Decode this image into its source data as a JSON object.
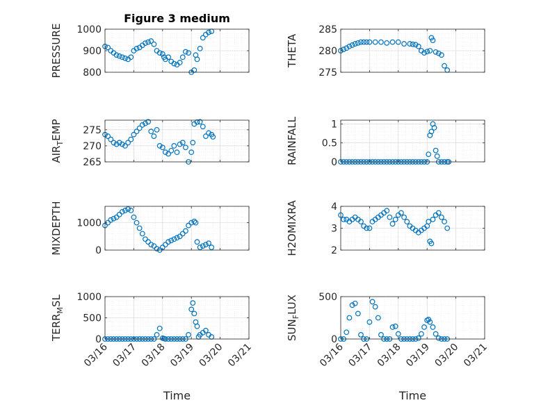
{
  "chart_data": [
    {
      "type": "scatter",
      "title": "Figure 3 medium",
      "ylabel": "PRESSURE",
      "ylim": [
        800,
        1000
      ],
      "yticks": [
        "800",
        "900",
        "1000"
      ],
      "yticks_values": [
        800,
        900,
        1000
      ],
      "xlim": [
        "03/16",
        "03/21"
      ],
      "grid": true,
      "series": [
        {
          "color": "#0072BD",
          "x": [
            16.0,
            16.1,
            16.2,
            16.3,
            16.4,
            16.5,
            16.6,
            16.7,
            16.8,
            16.9,
            17.0,
            17.1,
            17.2,
            17.3,
            17.4,
            17.5,
            17.6,
            17.7,
            17.8,
            17.9,
            18.0,
            18.05,
            18.1,
            18.2,
            18.3,
            18.4,
            18.5,
            18.6,
            18.7,
            18.8,
            18.9,
            19.0,
            19.1,
            19.15,
            19.2,
            19.3,
            19.4,
            19.5,
            19.6,
            19.7
          ],
          "y": [
            920,
            915,
            900,
            890,
            880,
            875,
            870,
            865,
            860,
            870,
            900,
            910,
            915,
            925,
            935,
            940,
            945,
            930,
            900,
            890,
            885,
            870,
            860,
            870,
            850,
            840,
            835,
            845,
            870,
            895,
            890,
            800,
            810,
            880,
            860,
            910,
            960,
            975,
            985,
            990
          ]
        }
      ]
    },
    {
      "type": "scatter",
      "title": "",
      "ylabel": "THETA",
      "ylim": [
        275,
        285
      ],
      "yticks": [
        "275",
        "280",
        "285"
      ],
      "yticks_values": [
        275,
        280,
        285
      ],
      "xlim": [
        "03/16",
        "03/21"
      ],
      "grid": true,
      "series": [
        {
          "color": "#0072BD",
          "x": [
            16.0,
            16.1,
            16.2,
            16.3,
            16.4,
            16.5,
            16.6,
            16.7,
            16.8,
            16.9,
            17.0,
            17.2,
            17.4,
            17.6,
            17.8,
            18.0,
            18.2,
            18.4,
            18.5,
            18.6,
            18.7,
            18.8,
            18.9,
            19.0,
            19.1,
            19.15,
            19.2,
            19.3,
            19.4,
            19.5,
            19.6,
            19.7
          ],
          "y": [
            280,
            280.3,
            280.6,
            281,
            281.3,
            281.6,
            281.8,
            282,
            282,
            282,
            282,
            282,
            282,
            281.8,
            282,
            282,
            281.6,
            281.6,
            281.5,
            281.4,
            281,
            280,
            279.5,
            279.8,
            280,
            283,
            282.4,
            279.7,
            279.4,
            279,
            276.5,
            275.5
          ]
        }
      ]
    },
    {
      "type": "scatter",
      "title": "",
      "ylabel": "AIR_TEMP",
      "ylabel_main": "AIR",
      "ylabel_sub": "T",
      "ylabel_rest": "EMP",
      "ylim": [
        265,
        278
      ],
      "yticks": [
        "265",
        "270",
        "275"
      ],
      "yticks_values": [
        265,
        270,
        275
      ],
      "xlim": [
        "03/16",
        "03/21"
      ],
      "grid": true,
      "series": [
        {
          "color": "#0072BD",
          "x": [
            16.0,
            16.1,
            16.2,
            16.3,
            16.4,
            16.5,
            16.6,
            16.7,
            16.8,
            16.9,
            17.0,
            17.1,
            17.2,
            17.3,
            17.4,
            17.5,
            17.6,
            17.7,
            17.8,
            17.9,
            18.0,
            18.1,
            18.2,
            18.3,
            18.4,
            18.5,
            18.6,
            18.7,
            18.8,
            18.9,
            19.0,
            19.05,
            19.1,
            19.2,
            19.3,
            19.4,
            19.5,
            19.6,
            19.7,
            19.75
          ],
          "y": [
            273.5,
            273,
            272,
            271,
            270.5,
            271,
            270.5,
            270,
            271,
            272,
            273.5,
            274.5,
            275.5,
            276.5,
            277,
            277.5,
            274.5,
            273,
            275,
            270,
            269.5,
            268,
            267.5,
            268.5,
            270,
            268,
            270.5,
            271,
            269.5,
            265,
            268,
            271,
            276.8,
            277.4,
            277.5,
            276,
            273,
            274,
            273.5,
            272.8
          ]
        }
      ]
    },
    {
      "type": "scatter",
      "title": "",
      "ylabel": "RAINFALL",
      "ylim": [
        0,
        1.1
      ],
      "yticks": [
        "0",
        "0.5",
        "1"
      ],
      "yticks_values": [
        0,
        0.5,
        1
      ],
      "xlim": [
        "03/16",
        "03/21"
      ],
      "grid": true,
      "series": [
        {
          "color": "#0072BD",
          "x": [
            16.0,
            16.1,
            16.2,
            16.3,
            16.4,
            16.5,
            16.6,
            16.7,
            16.8,
            16.9,
            17.0,
            17.1,
            17.2,
            17.3,
            17.4,
            17.5,
            17.6,
            17.7,
            17.8,
            17.9,
            18.0,
            18.1,
            18.2,
            18.3,
            18.4,
            18.5,
            18.6,
            18.7,
            18.8,
            18.9,
            19.0,
            19.05,
            19.1,
            19.15,
            19.2,
            19.25,
            19.3,
            19.35,
            19.4,
            19.5,
            19.6,
            19.7,
            19.75
          ],
          "y": [
            0,
            0,
            0,
            0,
            0,
            0,
            0,
            0,
            0,
            0,
            0,
            0,
            0,
            0,
            0,
            0,
            0,
            0,
            0,
            0,
            0,
            0,
            0,
            0,
            0,
            0,
            0,
            0,
            0,
            0,
            0,
            0.2,
            0.7,
            0.8,
            1.0,
            0.9,
            0.3,
            0.15,
            0,
            0,
            0,
            0,
            0
          ]
        }
      ]
    },
    {
      "type": "scatter",
      "title": "",
      "ylabel": "MIXDEPTH",
      "ylim": [
        0,
        1600
      ],
      "yticks": [
        "0",
        "1000"
      ],
      "yticks_values": [
        0,
        1000
      ],
      "xlim": [
        "03/16",
        "03/21"
      ],
      "grid": true,
      "series": [
        {
          "color": "#0072BD",
          "x": [
            16.0,
            16.1,
            16.2,
            16.3,
            16.4,
            16.5,
            16.6,
            16.7,
            16.8,
            16.9,
            17.0,
            17.1,
            17.2,
            17.3,
            17.4,
            17.5,
            17.6,
            17.7,
            17.8,
            17.9,
            18.0,
            18.1,
            18.2,
            18.3,
            18.4,
            18.5,
            18.6,
            18.7,
            18.8,
            18.9,
            19.0,
            19.1,
            19.15,
            19.2,
            19.3,
            19.4,
            19.5,
            19.6,
            19.7
          ],
          "y": [
            900,
            1000,
            1100,
            1150,
            1200,
            1300,
            1400,
            1450,
            1500,
            1450,
            1200,
            1000,
            800,
            600,
            400,
            300,
            200,
            150,
            50,
            0,
            100,
            200,
            300,
            350,
            400,
            450,
            500,
            600,
            700,
            900,
            1000,
            1050,
            1000,
            300,
            100,
            150,
            200,
            250,
            100
          ]
        }
      ]
    },
    {
      "type": "scatter",
      "title": "",
      "ylabel": "H2OMIXRA",
      "ylim": [
        2,
        4
      ],
      "yticks": [
        "2",
        "3",
        "4"
      ],
      "yticks_values": [
        2,
        3,
        4
      ],
      "xlim": [
        "03/16",
        "03/21"
      ],
      "grid": true,
      "series": [
        {
          "color": "#0072BD",
          "x": [
            16.0,
            16.1,
            16.2,
            16.3,
            16.4,
            16.5,
            16.6,
            16.7,
            16.8,
            16.9,
            17.0,
            17.1,
            17.2,
            17.3,
            17.4,
            17.5,
            17.6,
            17.7,
            17.8,
            17.9,
            18.0,
            18.1,
            18.2,
            18.3,
            18.4,
            18.5,
            18.6,
            18.7,
            18.8,
            18.9,
            19.0,
            19.05,
            19.1,
            19.15,
            19.2,
            19.3,
            19.4,
            19.5,
            19.6,
            19.7
          ],
          "y": [
            3.6,
            3.4,
            3.4,
            3.3,
            3.4,
            3.5,
            3.4,
            3.3,
            3.1,
            3.0,
            3.0,
            3.3,
            3.4,
            3.5,
            3.6,
            3.7,
            3.8,
            3.5,
            3.2,
            3.4,
            3.6,
            3.7,
            3.5,
            3.3,
            3.1,
            3.0,
            2.9,
            2.8,
            2.9,
            3.0,
            3.1,
            3.3,
            2.4,
            2.3,
            3.4,
            3.6,
            3.7,
            3.5,
            3.3,
            3.0
          ]
        }
      ]
    },
    {
      "type": "scatter",
      "title": "",
      "ylabel": "TERR_MSL",
      "ylabel_main": "TERR",
      "ylabel_sub": "M",
      "ylabel_rest": "SL",
      "ylim": [
        0,
        1000
      ],
      "yticks": [
        "0",
        "500",
        "1000"
      ],
      "yticks_values": [
        0,
        500,
        1000
      ],
      "xlim": [
        "03/16",
        "03/21"
      ],
      "xticks": [
        "03/16",
        "03/17",
        "03/18",
        "03/19",
        "03/20",
        "03/21"
      ],
      "xlabel": "Time",
      "grid": true,
      "series": [
        {
          "color": "#0072BD",
          "x": [
            16.0,
            16.1,
            16.2,
            16.3,
            16.4,
            16.5,
            16.6,
            16.7,
            16.8,
            16.9,
            17.0,
            17.1,
            17.2,
            17.3,
            17.4,
            17.5,
            17.6,
            17.7,
            17.8,
            17.9,
            18.0,
            18.05,
            18.1,
            18.2,
            18.3,
            18.4,
            18.5,
            18.6,
            18.7,
            18.8,
            18.9,
            19.0,
            19.05,
            19.1,
            19.15,
            19.2,
            19.25,
            19.3,
            19.4,
            19.5,
            19.6,
            19.7
          ],
          "y": [
            0,
            0,
            0,
            0,
            0,
            0,
            0,
            0,
            0,
            0,
            0,
            0,
            0,
            0,
            0,
            0,
            0,
            0,
            100,
            250,
            20,
            10,
            0,
            0,
            0,
            0,
            0,
            0,
            0,
            0,
            100,
            700,
            850,
            600,
            400,
            300,
            50,
            100,
            150,
            200,
            100,
            50
          ]
        }
      ]
    },
    {
      "type": "scatter",
      "title": "",
      "ylabel": "SUN_FLUX",
      "ylabel_main": "SUN",
      "ylabel_sub": "F",
      "ylabel_rest": "LUX",
      "ylim": [
        0,
        500
      ],
      "yticks": [
        "0",
        "500"
      ],
      "yticks_values": [
        0,
        500
      ],
      "xlim": [
        "03/16",
        "03/21"
      ],
      "xticks": [
        "03/16",
        "03/17",
        "03/18",
        "03/19",
        "03/20",
        "03/21"
      ],
      "xlabel": "Time",
      "grid": true,
      "series": [
        {
          "color": "#0072BD",
          "x": [
            16.0,
            16.1,
            16.2,
            16.3,
            16.4,
            16.5,
            16.6,
            16.7,
            16.8,
            16.9,
            17.0,
            17.1,
            17.2,
            17.3,
            17.4,
            17.5,
            17.6,
            17.7,
            17.8,
            17.9,
            18.0,
            18.1,
            18.2,
            18.3,
            18.4,
            18.5,
            18.6,
            18.7,
            18.8,
            18.9,
            19.0,
            19.05,
            19.1,
            19.2,
            19.3,
            19.4,
            19.5,
            19.6,
            19.7
          ],
          "y": [
            0,
            0,
            80,
            250,
            400,
            420,
            300,
            50,
            0,
            0,
            200,
            440,
            380,
            250,
            50,
            0,
            0,
            0,
            140,
            150,
            60,
            0,
            0,
            0,
            0,
            0,
            0,
            10,
            60,
            140,
            220,
            230,
            200,
            140,
            60,
            10,
            0,
            0,
            0
          ]
        }
      ]
    }
  ]
}
